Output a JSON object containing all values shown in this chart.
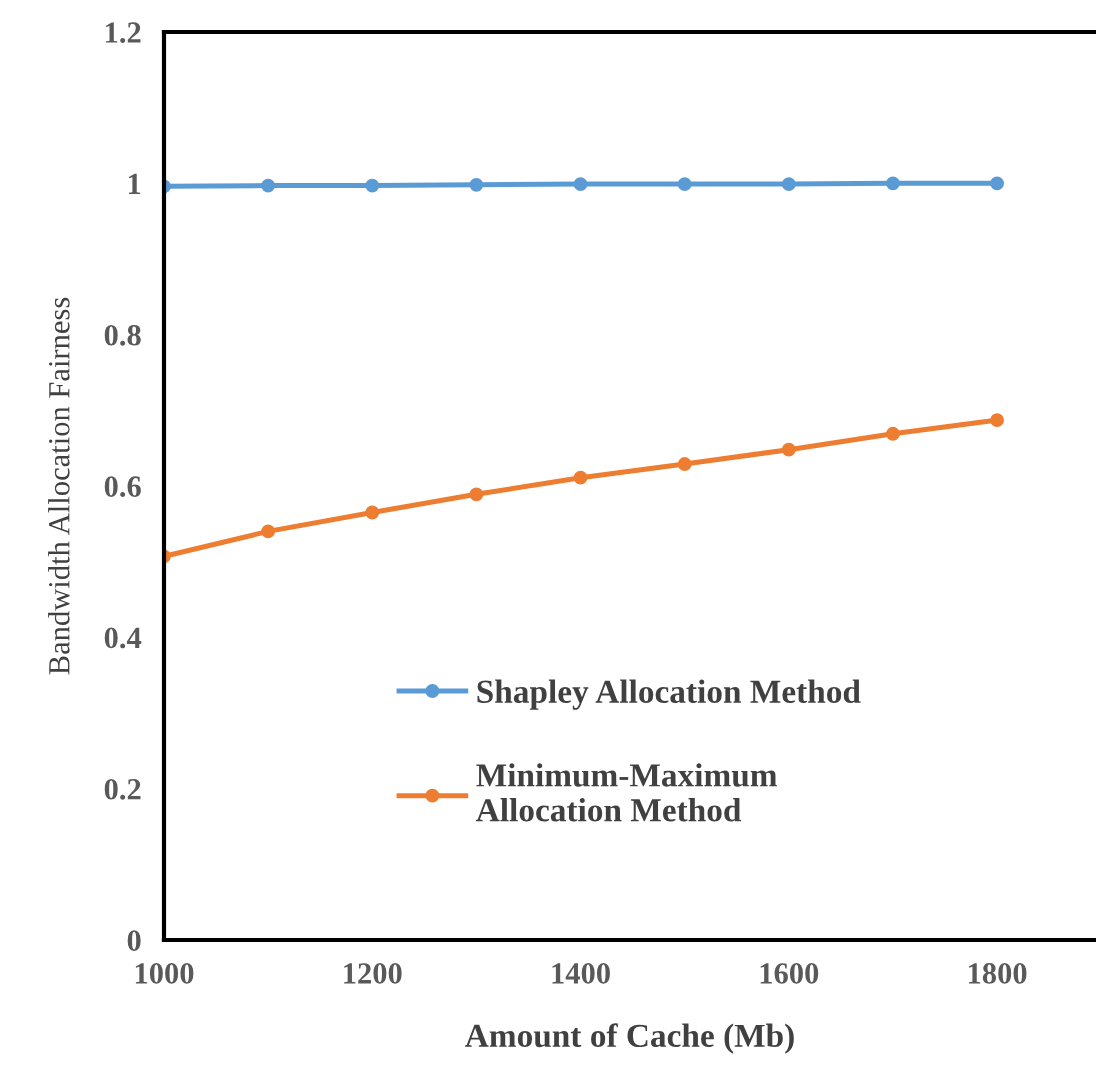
{
  "chart_data": {
    "type": "line",
    "xlabel": "Amount of Cache (Mb)",
    "ylabel": "Bandwidth Allocation Fairness",
    "x": [
      1000,
      1100,
      1200,
      1300,
      1400,
      1500,
      1600,
      1700,
      1800
    ],
    "series": [
      {
        "name": "Shapley Allocation Method",
        "color": "#5b9bd5",
        "values": [
          0.996,
          0.997,
          0.997,
          0.998,
          0.999,
          0.999,
          0.999,
          1.0,
          1.0
        ]
      },
      {
        "name": "Minimum-Maximum\nAllocation Method",
        "color": "#ed7d31",
        "values": [
          0.507,
          0.54,
          0.565,
          0.589,
          0.611,
          0.629,
          0.648,
          0.669,
          0.687
        ]
      }
    ],
    "xlim": [
      1000,
      1895
    ],
    "xticks": [
      1000,
      1200,
      1400,
      1600,
      1800
    ],
    "ylim": [
      0,
      1.2
    ],
    "yticks": [
      0,
      0.2,
      0.4,
      0.6,
      0.8,
      1,
      1.2
    ],
    "grid": false,
    "legend": "bottom",
    "marker": "circle",
    "line_style": "solid"
  }
}
